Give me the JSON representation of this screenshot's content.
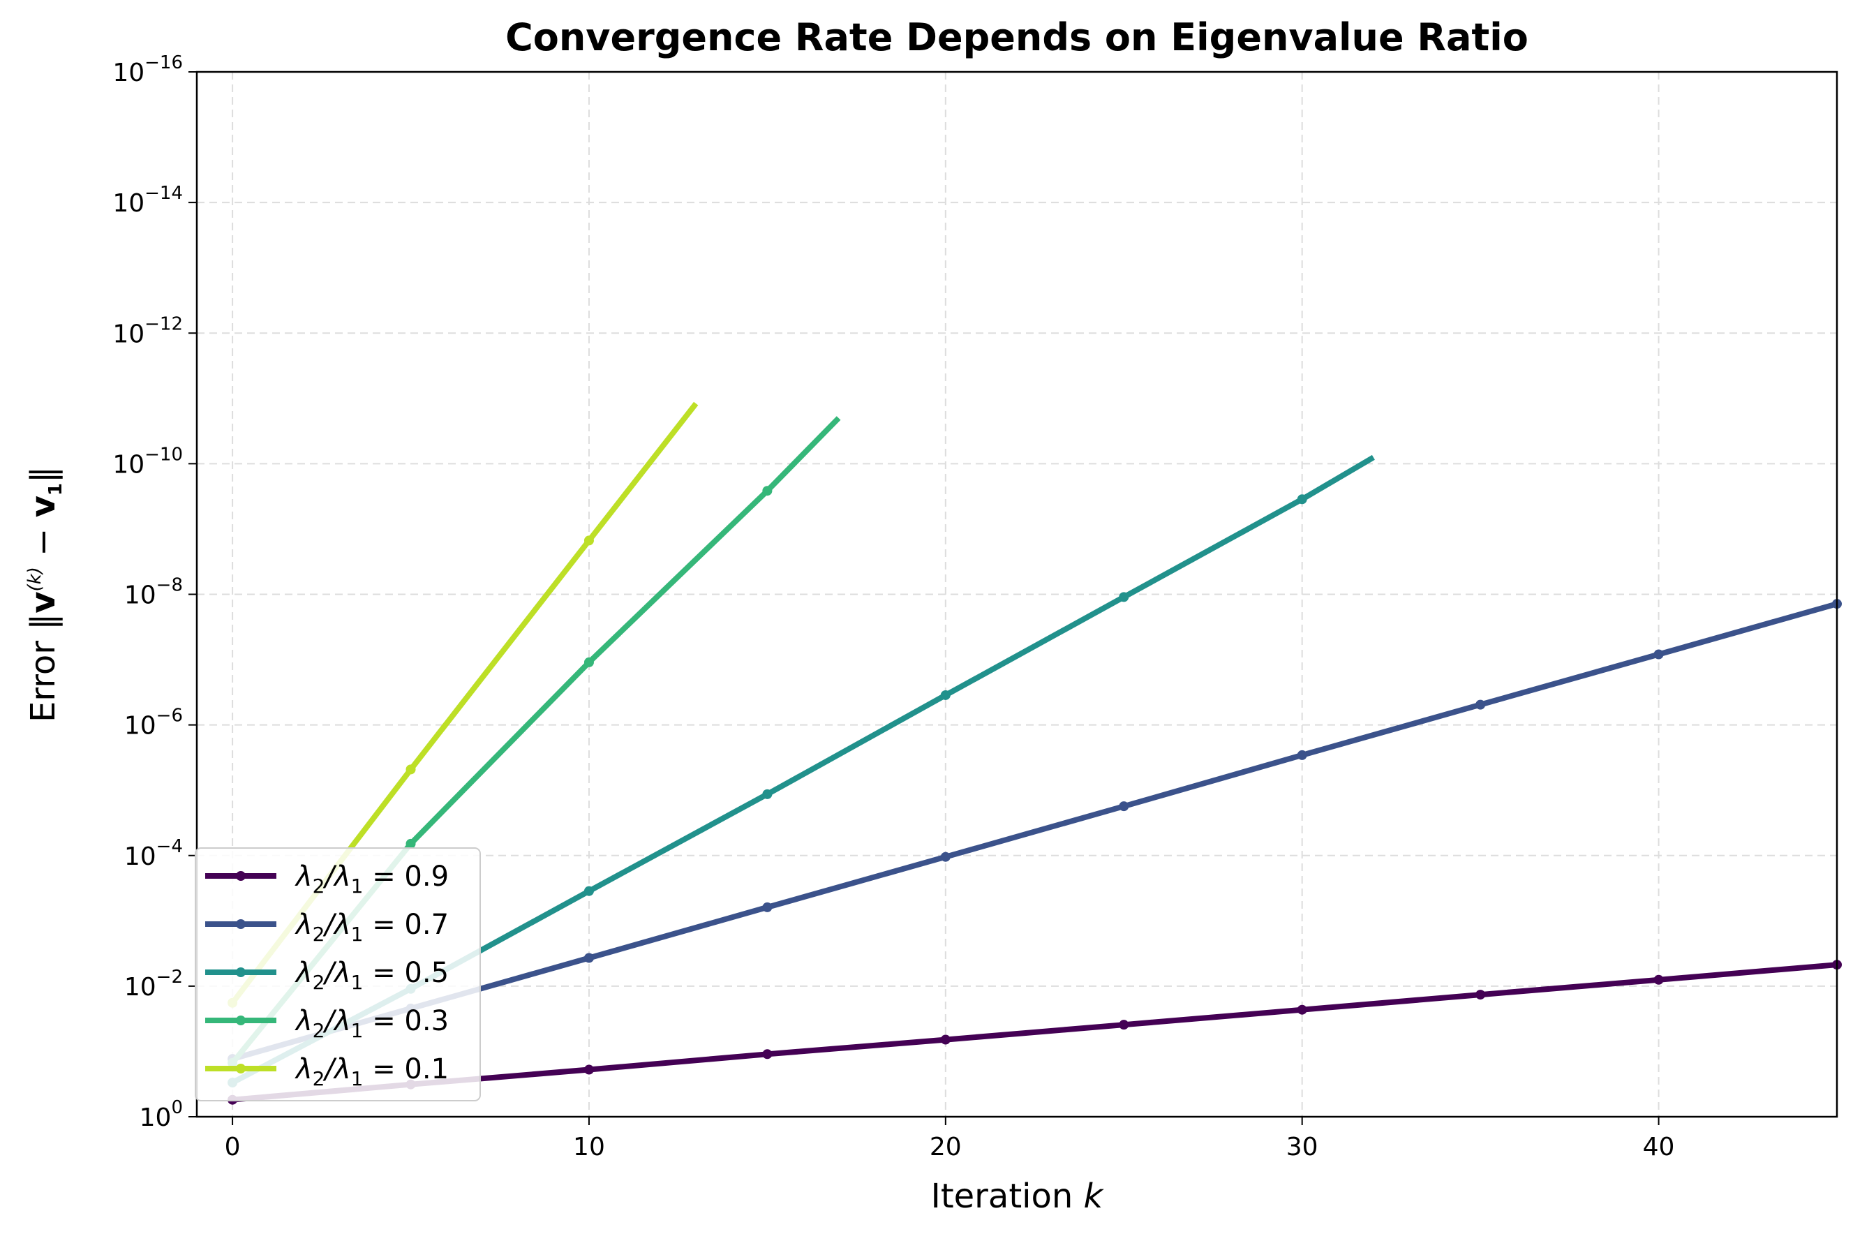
{
  "chart_data": {
    "type": "line",
    "title": "Convergence Rate Depends on Eigenvalue Ratio",
    "xlabel": {
      "prefix": "Iteration ",
      "var": "k"
    },
    "ylabel": {
      "prefix": "Error ",
      "vec": "v",
      "sup": "(k)",
      "minus": " − ",
      "vec2": "v",
      "sub2": "1"
    },
    "x_range": [
      -1.0,
      45.0
    ],
    "y_scale": "log",
    "y_range_exp": [
      -16,
      0
    ],
    "x_ticks": [
      0,
      10,
      20,
      30,
      40
    ],
    "y_ticks_exp": [
      0,
      -2,
      -4,
      -6,
      -8,
      -10,
      -12,
      -14,
      -16
    ],
    "y_tick_base": "10",
    "grid": true,
    "legend_placement": "lower-left",
    "series": [
      {
        "name": "λ2/λ1 = 0.9",
        "ratio_label": "0.9",
        "color": "#440154",
        "x": [
          0,
          5,
          10,
          15,
          20,
          25,
          30,
          35,
          40,
          45
        ],
        "y": [
          0.55,
          0.32,
          0.19,
          0.11,
          0.066,
          0.039,
          0.023,
          0.0135,
          0.008,
          0.0047
        ],
        "line_end": {
          "x": 45,
          "y": 0.0047
        }
      },
      {
        "name": "λ2/λ1 = 0.7",
        "ratio_label": "0.7",
        "color": "#3b528b",
        "x": [
          0,
          5,
          10,
          15,
          20,
          25,
          30,
          35,
          40,
          45
        ],
        "y": [
          0.13,
          0.022,
          0.0037,
          0.00062,
          0.000105,
          1.76e-05,
          2.9e-06,
          4.9e-07,
          8.3e-08,
          1.4e-08
        ],
        "line_end": {
          "x": 45,
          "y": 1.4e-08
        }
      },
      {
        "name": "λ2/λ1 = 0.5",
        "ratio_label": "0.5",
        "color": "#21918c",
        "x": [
          0,
          5,
          10,
          15,
          20,
          25,
          30
        ],
        "y": [
          0.3,
          0.011,
          0.00035,
          1.15e-05,
          3.5e-07,
          1.1e-08,
          3.5e-10
        ],
        "line_end": {
          "x": 32,
          "y": 8e-11
        }
      },
      {
        "name": "λ2/λ1 = 0.3",
        "ratio_label": "0.3",
        "color": "#35b779",
        "x": [
          0,
          5,
          10,
          15
        ],
        "y": [
          0.15,
          6.6e-05,
          1.1e-07,
          2.6e-10
        ],
        "line_end": {
          "x": 17,
          "y": 2e-11
        }
      },
      {
        "name": "λ2/λ1 = 0.1",
        "ratio_label": "0.1",
        "color": "#bddf26",
        "x": [
          0,
          5,
          10
        ],
        "y": [
          0.018,
          4.8e-06,
          1.5e-09
        ],
        "line_end": {
          "x": 13,
          "y": 1.2e-11
        }
      }
    ]
  }
}
